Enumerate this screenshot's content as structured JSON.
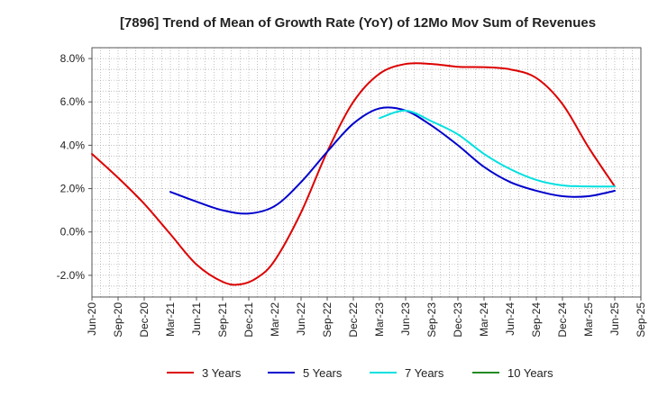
{
  "chart_data": {
    "type": "line",
    "title": "[7896]  Trend of Mean of Growth Rate (YoY) of 12Mo Mov Sum of Revenues",
    "xlabel": "",
    "ylabel": "",
    "ylim": [
      -3.0,
      8.5
    ],
    "yticks": [
      8.0,
      6.0,
      4.0,
      2.0,
      0.0,
      -2.0
    ],
    "ytick_labels": [
      "8.0%",
      "6.0%",
      "4.0%",
      "2.0%",
      "0.0%",
      "-2.0%"
    ],
    "x_tick_labels": [
      "Jun-20",
      "Sep-20",
      "Dec-20",
      "Mar-21",
      "Jun-21",
      "Sep-21",
      "Dec-21",
      "Mar-22",
      "Jun-22",
      "Sep-22",
      "Dec-22",
      "Mar-23",
      "Jun-23",
      "Sep-23",
      "Dec-23",
      "Mar-24",
      "Jun-24",
      "Sep-24",
      "Dec-24",
      "Mar-25",
      "Jun-25",
      "Sep-25"
    ],
    "x_domain": [
      0,
      63
    ],
    "grid": true,
    "legend_position": "bottom",
    "series": [
      {
        "name": "3 Years",
        "color": "#dd0000",
        "points": [
          [
            0,
            3.6
          ],
          [
            3,
            2.5
          ],
          [
            6,
            1.3
          ],
          [
            9,
            -0.1
          ],
          [
            12,
            -1.5
          ],
          [
            15,
            -2.3
          ],
          [
            17,
            -2.42
          ],
          [
            19,
            -2.1
          ],
          [
            21,
            -1.3
          ],
          [
            24,
            0.9
          ],
          [
            27,
            3.7
          ],
          [
            30,
            6.0
          ],
          [
            33,
            7.3
          ],
          [
            36,
            7.75
          ],
          [
            39,
            7.75
          ],
          [
            42,
            7.62
          ],
          [
            45,
            7.6
          ],
          [
            48,
            7.5
          ],
          [
            51,
            7.1
          ],
          [
            54,
            5.9
          ],
          [
            57,
            3.9
          ],
          [
            60,
            2.1
          ]
        ]
      },
      {
        "name": "5 Years",
        "color": "#0000cc",
        "points": [
          [
            9,
            1.85
          ],
          [
            12,
            1.4
          ],
          [
            15,
            1.0
          ],
          [
            18,
            0.85
          ],
          [
            21,
            1.2
          ],
          [
            24,
            2.3
          ],
          [
            27,
            3.7
          ],
          [
            30,
            5.0
          ],
          [
            33,
            5.7
          ],
          [
            36,
            5.6
          ],
          [
            39,
            4.9
          ],
          [
            42,
            4.0
          ],
          [
            45,
            3.0
          ],
          [
            48,
            2.3
          ],
          [
            51,
            1.9
          ],
          [
            54,
            1.65
          ],
          [
            57,
            1.65
          ],
          [
            60,
            1.9
          ]
        ]
      },
      {
        "name": "7 Years",
        "color": "#00e0e0",
        "points": [
          [
            33,
            5.25
          ],
          [
            36,
            5.6
          ],
          [
            39,
            5.1
          ],
          [
            42,
            4.5
          ],
          [
            45,
            3.6
          ],
          [
            48,
            2.9
          ],
          [
            51,
            2.4
          ],
          [
            54,
            2.15
          ],
          [
            57,
            2.1
          ],
          [
            60,
            2.1
          ]
        ]
      },
      {
        "name": "10 Years",
        "color": "#228b22",
        "points": []
      }
    ]
  }
}
